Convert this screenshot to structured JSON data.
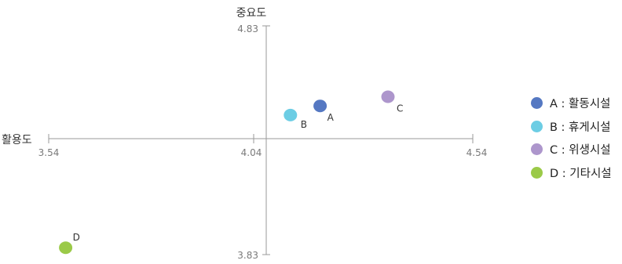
{
  "chart_data": {
    "type": "scatter",
    "x_axis": {
      "title": "활용도",
      "min": 3.54,
      "max": 4.54,
      "center": 4.04,
      "ticks": [
        "3.54",
        "4.04",
        "4.54"
      ]
    },
    "y_axis": {
      "title": "중요도",
      "min": 3.83,
      "max": 4.83,
      "center": 4.33,
      "ticks": [
        "4.83",
        "3.83"
      ]
    },
    "points": [
      {
        "label": "A",
        "x": 4.18,
        "y": 4.48,
        "color": "#5578c2"
      },
      {
        "label": "B",
        "x": 4.11,
        "y": 4.44,
        "color": "#6ccde4"
      },
      {
        "label": "C",
        "x": 4.34,
        "y": 4.52,
        "color": "#ad96cc"
      },
      {
        "label": "D",
        "x": 3.58,
        "y": 3.86,
        "color": "#9bca48"
      }
    ],
    "legend": [
      {
        "text": "A : 활동시설",
        "color": "#5578c2"
      },
      {
        "text": "B : 휴게시설",
        "color": "#6ccde4"
      },
      {
        "text": "C : 위생시설",
        "color": "#ad96cc"
      },
      {
        "text": "D : 기타시설",
        "color": "#9bca48"
      }
    ]
  }
}
